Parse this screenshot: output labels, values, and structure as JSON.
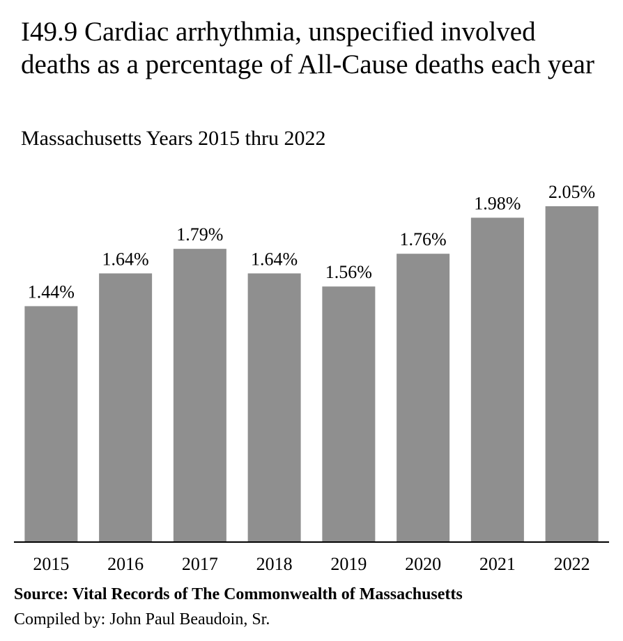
{
  "chart_data": {
    "type": "bar",
    "title": "I49.9 Cardiac arrhythmia, unspecified involved deaths as a percentage of All-Cause deaths each year",
    "subtitle": "Massachusetts Years 2015 thru 2022",
    "categories": [
      "2015",
      "2016",
      "2017",
      "2018",
      "2019",
      "2020",
      "2021",
      "2022"
    ],
    "values": [
      1.44,
      1.64,
      1.79,
      1.64,
      1.56,
      1.76,
      1.98,
      2.05
    ],
    "data_labels": [
      "1.44%",
      "1.64%",
      "1.79%",
      "1.64%",
      "1.56%",
      "1.76%",
      "1.98%",
      "2.05%"
    ],
    "xlabel": "",
    "ylabel": "",
    "ylim": [
      0,
      2.05
    ],
    "grid": false,
    "bar_color": "#8f8f8f"
  },
  "footer": {
    "source": "Source:  Vital Records of The Commonwealth of Massachusetts",
    "compiled": "Compiled by:  John Paul Beaudoin, Sr."
  }
}
